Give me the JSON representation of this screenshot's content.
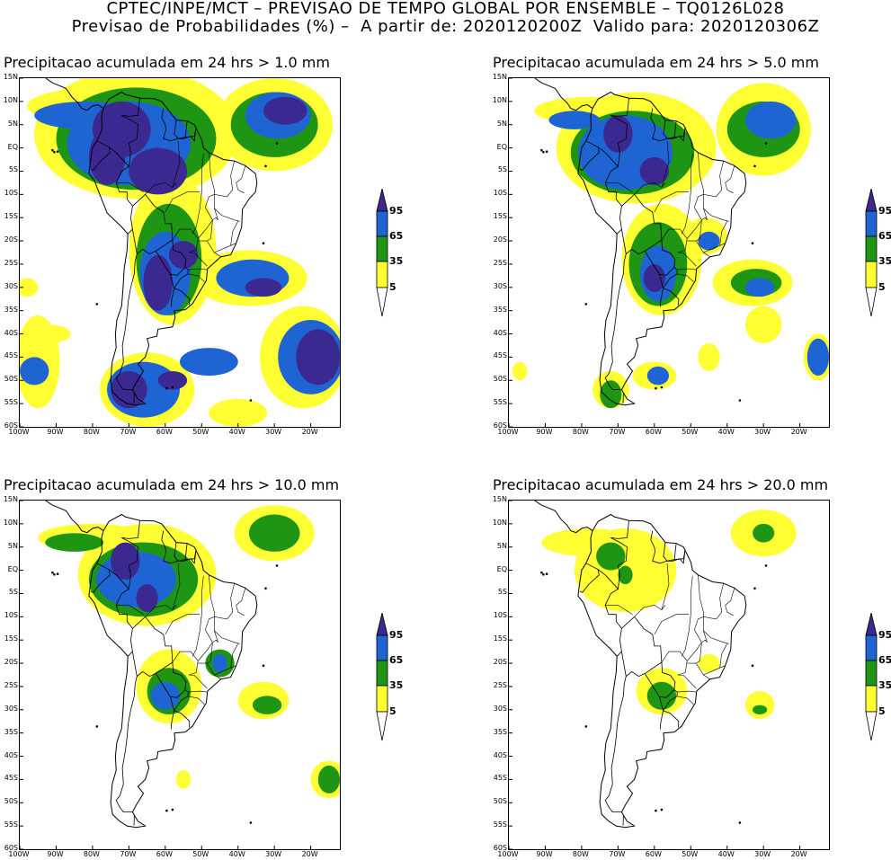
{
  "header": {
    "line1": "CPTEC/INPE/MCT – PREVISAO DE TEMPO GLOBAL POR ENSEMBLE – TQ0126L028",
    "line2": "Previsao de Probabilidades (%) –  A partir de: 2020120200Z  Valido para: 2020120306Z"
  },
  "colors": {
    "c5": "#ffff33",
    "c35": "#1e9614",
    "c65": "#1e64d2",
    "c95": "#3c2891"
  },
  "colorbar_labels": [
    "95",
    "65",
    "35",
    "5"
  ],
  "lat_ticks": [
    "15N",
    "10N",
    "5N",
    "EQ",
    "5S",
    "10S",
    "15S",
    "20S",
    "25S",
    "30S",
    "35S",
    "40S",
    "45S",
    "50S",
    "55S",
    "60S"
  ],
  "lon_ticks": [
    "100W",
    "90W",
    "80W",
    "70W",
    "60W",
    "50W",
    "40W",
    "30W",
    "20W"
  ],
  "panels": [
    {
      "title": "Precipitacao acumulada em 24 hrs > 1.0 mm",
      "threshold": 1.0
    },
    {
      "title": "Precipitacao acumulada em 24 hrs > 5.0 mm",
      "threshold": 5.0
    },
    {
      "title": "Precipitacao acumulada em 24 hrs > 10.0 mm",
      "threshold": 10.0
    },
    {
      "title": "Precipitacao acumulada em 24 hrs > 20.0 mm",
      "threshold": 20.0
    }
  ]
}
